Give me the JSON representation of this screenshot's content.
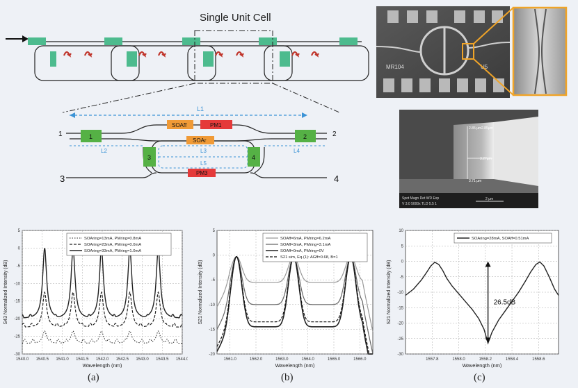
{
  "figure": {
    "unit_cell_title": "Single Unit Cell",
    "panel_labels": [
      "(a)",
      "(b)",
      "(c)"
    ]
  },
  "schematic": {
    "ports": [
      "1",
      "2",
      "3",
      "4"
    ],
    "couplers": [
      "1",
      "2",
      "3",
      "4"
    ],
    "blocks": [
      "SOAff",
      "PM1",
      "SOAr",
      "PM3"
    ],
    "lengths": [
      "L1",
      "L2",
      "L3",
      "L5",
      "L4"
    ]
  },
  "sem": {
    "dims": [
      "2.85 µm",
      "2.85µm",
      "3.27µm",
      "3.71 µm"
    ],
    "footer_line1": "Spot Magn   Det  WD   Exp",
    "footer_line2": "V 3.0   5000x  TLD 5.5   1",
    "scale_label": "2 µm",
    "chip_labels": [
      "MR104",
      "U5"
    ]
  },
  "chart_data": [
    {
      "type": "line",
      "title": "",
      "xlabel": "Wavelength (nm)",
      "ylabel": "S43 Normalized Intensity (dB)",
      "xlim": [
        1540.0,
        1544.0
      ],
      "ylim": [
        -30,
        5
      ],
      "xticks": [
        "1540.0",
        "1540.5",
        "1541.0",
        "1541.5",
        "1542.0",
        "1542.5",
        "1543.0",
        "1543.5",
        "1544.0"
      ],
      "yticks": [
        "5",
        "0",
        "-5",
        "-10",
        "-15",
        "-20",
        "-25",
        "-30"
      ],
      "legend": "top-right",
      "grid": true,
      "peaks": [
        1540.56,
        1541.27,
        1541.98,
        1542.69,
        1543.4
      ],
      "series": [
        {
          "name": "SOAring=13mA, PMring=0.8mA",
          "style": "dotted",
          "baseline": -27,
          "peak": -23.5
        },
        {
          "name": "SOAring=23mA, PMring=0.0mA",
          "style": "dashed",
          "baseline": -22.5,
          "peak": -12.5
        },
        {
          "name": "SOAring=33mA, PMring=1.0mA",
          "style": "solid",
          "baseline": -20,
          "peak": 0
        }
      ]
    },
    {
      "type": "line",
      "title": "",
      "xlabel": "Wavelength (nm)",
      "ylabel": "S21 Normalized Intensity (dB)",
      "xlim": [
        1560.5,
        1566.5
      ],
      "ylim": [
        -20,
        5
      ],
      "xticks": [
        "1561.0",
        "1562.0",
        "1563.0",
        "1564.0",
        "1565.0",
        "1566.0"
      ],
      "yticks": [
        "5",
        "0",
        "-5",
        "-10",
        "-15",
        "-20"
      ],
      "legend": "top-right",
      "grid": true,
      "dips": [
        1562.35,
        1564.55
      ],
      "series": [
        {
          "name": "SOAff=6mA, PMring=6.2mA",
          "style": "solid-light",
          "dip": -5.5
        },
        {
          "name": "SOAff=3mA, PMring=3.1mA",
          "style": "solid-mid",
          "dip": -10
        },
        {
          "name": "SOAff=0mA, PMring=0V",
          "style": "solid-dark",
          "dip": -14.5
        },
        {
          "name": "S21 sim, Eq.(1): AGff=0.68, B=1",
          "style": "dashed",
          "dip": -13.5
        }
      ]
    },
    {
      "type": "line",
      "title": "",
      "xlabel": "Wavelength (nm)",
      "ylabel": "S21 Normalized Intensity (dB)",
      "xlim": [
        1557.6,
        1558.75
      ],
      "ylim": [
        -30,
        10
      ],
      "xticks": [
        "1557.8",
        "1558.0",
        "1558.2",
        "1558.4",
        "1558.6"
      ],
      "yticks": [
        "10",
        "5",
        "0",
        "-5",
        "-10",
        "-15",
        "-20",
        "-25",
        "-30"
      ],
      "legend": "top-right",
      "grid": true,
      "series": [
        {
          "name": "SOAring=28mA, SOAff=0.51mA",
          "style": "solid",
          "x": [
            1557.6,
            1557.66,
            1557.72,
            1557.76,
            1557.79,
            1557.82,
            1557.85,
            1557.88,
            1557.91,
            1557.95,
            1558.0,
            1558.05,
            1558.1,
            1558.15,
            1558.19,
            1558.22,
            1558.25,
            1558.3,
            1558.35,
            1558.4,
            1558.45,
            1558.5,
            1558.54,
            1558.58,
            1558.61,
            1558.64,
            1558.68,
            1558.72,
            1558.75
          ],
          "y": [
            -11,
            -9,
            -6,
            -3.5,
            -1.5,
            -0.3,
            -1,
            -3,
            -5.5,
            -8,
            -10.5,
            -13,
            -15.5,
            -18.5,
            -22,
            -26.5,
            -23,
            -19,
            -16,
            -13,
            -10,
            -6.5,
            -3.5,
            -1,
            -0.2,
            -1.5,
            -5,
            -9,
            -11
          ]
        }
      ],
      "annotation": "26.5dB"
    }
  ]
}
